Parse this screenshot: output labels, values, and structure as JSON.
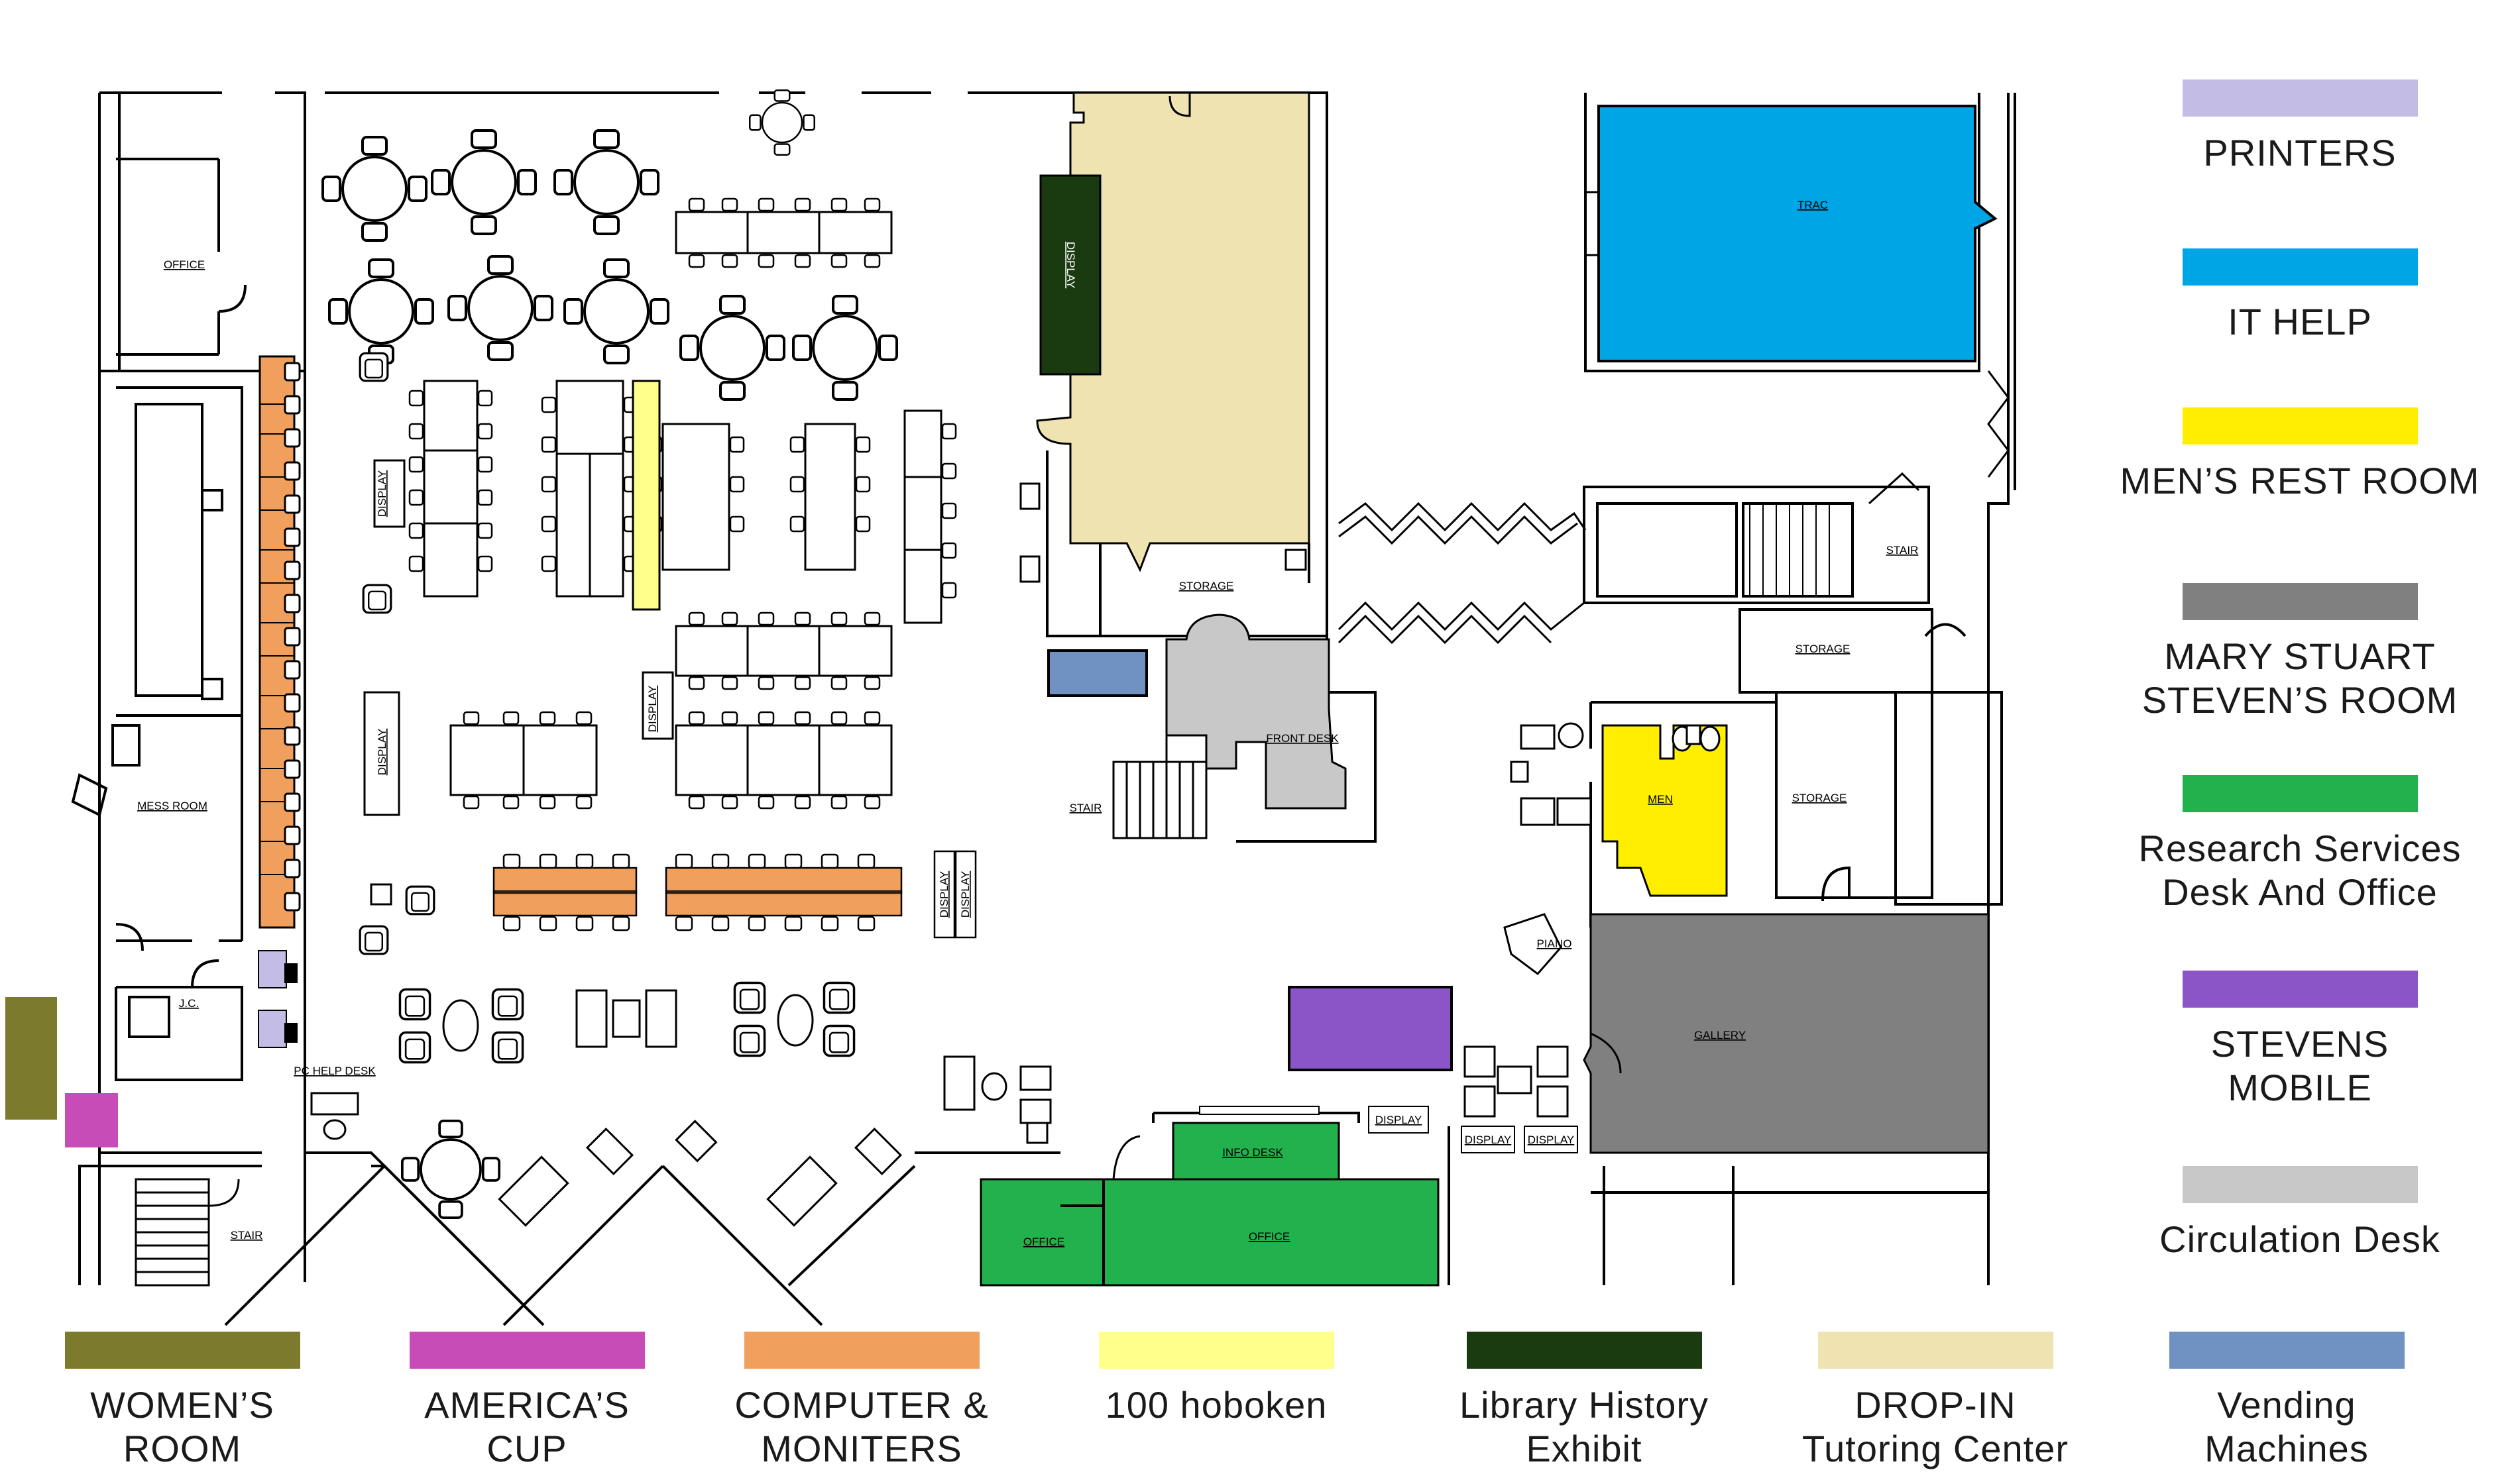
{
  "floor_plan": {
    "room_labels": {
      "office_left": "OFFICE",
      "mess_room": "MESS ROOM",
      "jc": "J.C.",
      "pc_help_desk": "PC HELP DESK",
      "stair_bottom_left": "STAIR",
      "display_1": "DISPLAY",
      "display_2": "DISPLAY",
      "display_3": "DISPLAY",
      "display_4": "DISPLAY",
      "display_5": "DISPLAY",
      "display_6": "DISPLAY",
      "display_7": "DISPLAY",
      "display_8": "DISPLAY",
      "display_history": "DISPLAY",
      "storage_center": "STORAGE",
      "front_desk": "FRONT DESK",
      "stair_center": "STAIR",
      "info_desk": "INFO DESK",
      "office_bottom_1": "OFFICE",
      "office_bottom_2": "OFFICE",
      "trac": "TRAC",
      "stair_right": "STAIR",
      "storage_right_1": "STORAGE",
      "storage_right_2": "STORAGE",
      "men": "MEN",
      "piano": "PIANO",
      "gallery": "GALLERY"
    }
  },
  "legend": {
    "printers": {
      "label": "PRINTERS",
      "color": "#c3bde5"
    },
    "it_help": {
      "label": "IT HELP",
      "color": "#00a5e5"
    },
    "mens_rest_room": {
      "label": "MEN’S REST ROOM",
      "color": "#ffee00"
    },
    "mary_stuart": {
      "label": "MARY STUART\nSTEVEN’S ROOM",
      "color": "#808080"
    },
    "research_services": {
      "label": "Research Services\nDesk And Office",
      "color": "#22b14c"
    },
    "stevens_mobile": {
      "label": "STEVENS\nMOBILE",
      "color": "#8c55c7"
    },
    "circulation_desk": {
      "label": "Circulation Desk",
      "color": "#c8c8c8"
    },
    "womens_room": {
      "label": "WOMEN’S\nROOM",
      "color": "#7c7a2c"
    },
    "americas_cup": {
      "label": "AMERICA’S\nCUP",
      "color": "#c74cb8"
    },
    "computers": {
      "label": "COMPUTER &\nMONITERS",
      "color": "#f0a05c"
    },
    "hoboken": {
      "label": "100 hoboken",
      "color": "#ffff8c"
    },
    "library_history": {
      "label": "Library History\nExhibit",
      "color": "#1a3a10"
    },
    "dropin_tutoring": {
      "label": "DROP-IN\nTutoring Center",
      "color": "#efe3b1"
    },
    "vending": {
      "label": "Vending\nMachines",
      "color": "#6f92c2"
    }
  }
}
